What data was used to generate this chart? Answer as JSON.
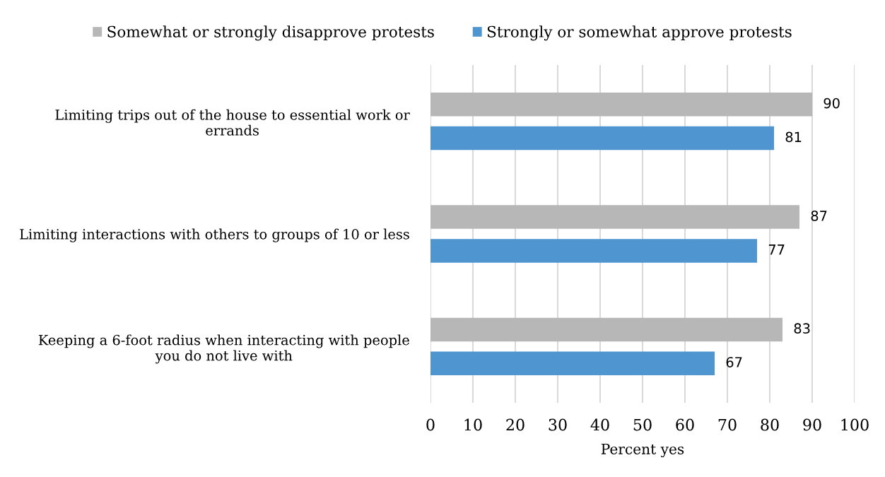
{
  "chart_data": {
    "type": "bar",
    "orientation": "horizontal",
    "categories": [
      "Limiting trips out of the house to essential work or errands",
      "Limiting interactions with others to groups of 10 or less",
      "Keeping a 6-foot radius when interacting with people you do not live with"
    ],
    "series": [
      {
        "name": "Somewhat or strongly disapprove protests",
        "color": "#b7b7b7",
        "values": [
          90,
          87,
          83
        ]
      },
      {
        "name": "Strongly or somewhat approve protests",
        "color": "#4f96d1",
        "values": [
          81,
          77,
          67
        ]
      }
    ],
    "xlabel": "Percent yes",
    "xlim": [
      0,
      100
    ],
    "xticks": [
      0,
      10,
      20,
      30,
      40,
      50,
      60,
      70,
      80,
      90,
      100
    ],
    "grid": "x",
    "legend": "top",
    "data_labels": true
  }
}
